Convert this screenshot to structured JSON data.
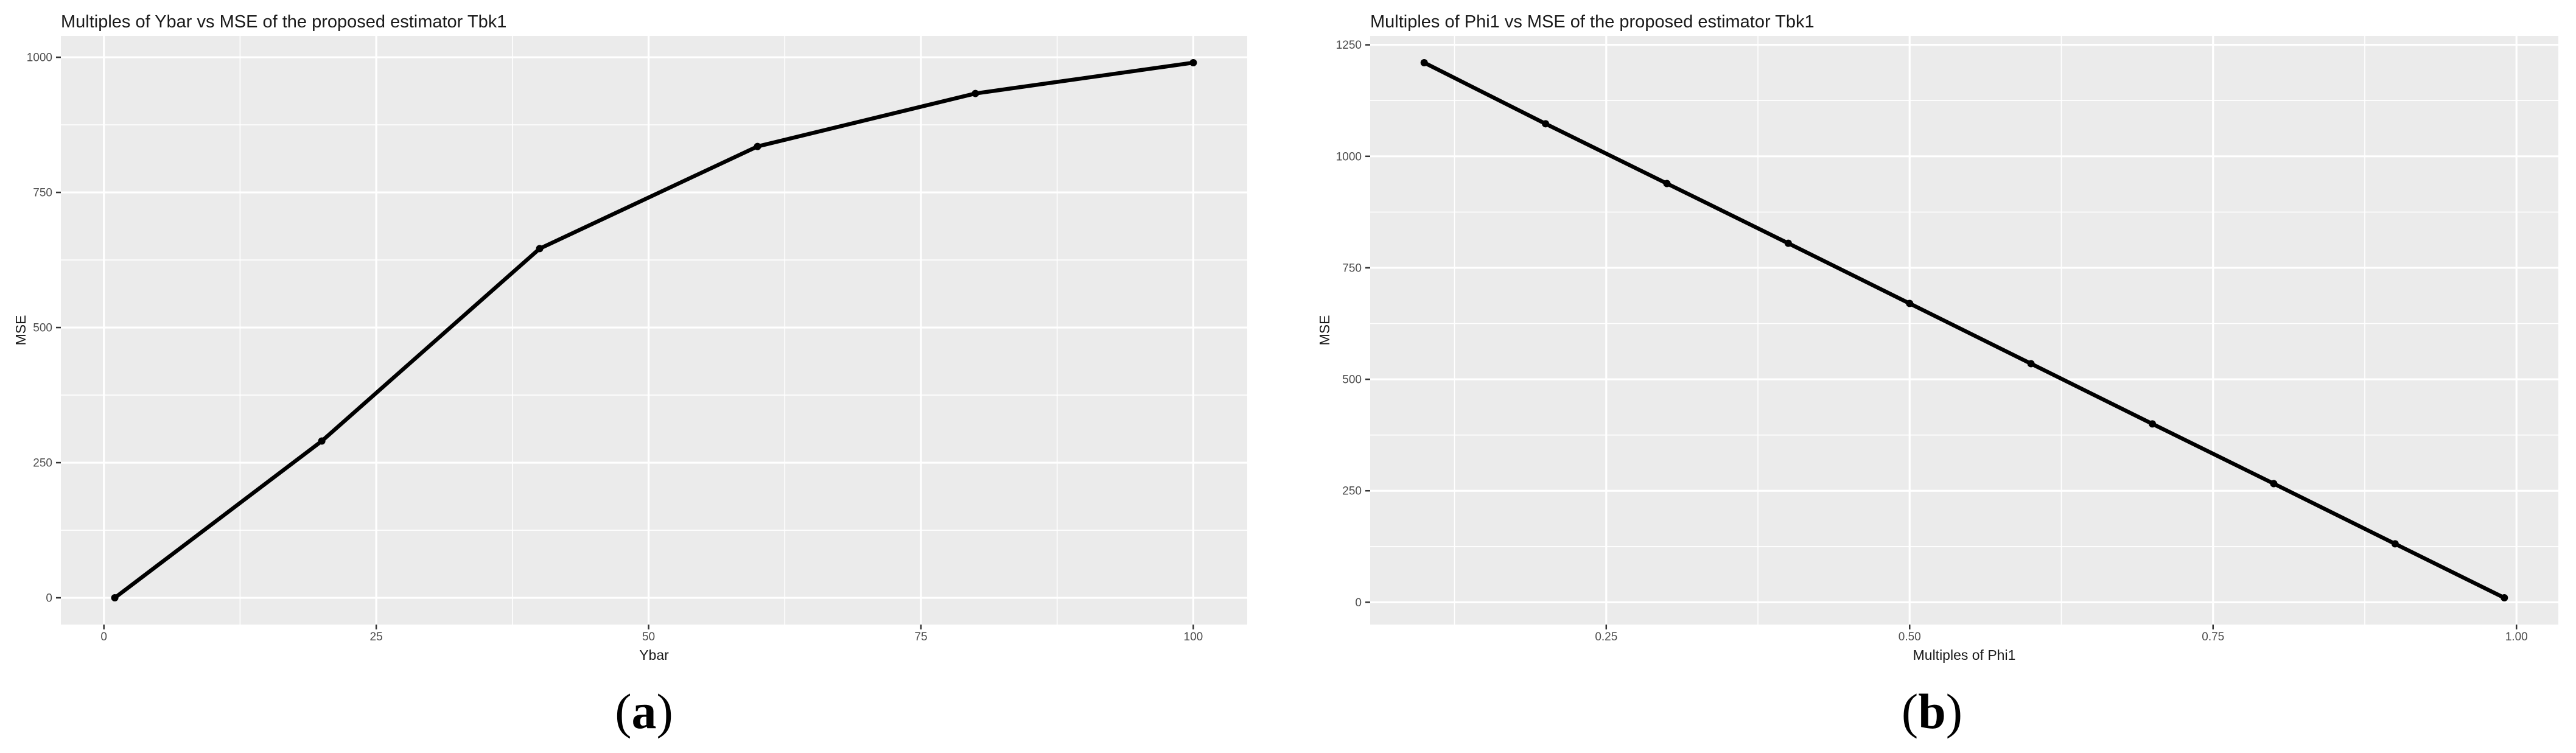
{
  "page": {
    "background": "#ffffff"
  },
  "style": {
    "panel_bg": "#ebebeb",
    "grid_color": "#ffffff",
    "tick_mark_color": "#333333",
    "tick_label_color": "#4d4d4d",
    "title_color": "#1a1a1a",
    "axis_title_color": "#1a1a1a",
    "series_color": "#000000"
  },
  "figure": {
    "panels": [
      {
        "caption_open": "(",
        "caption_letter": "a",
        "caption_close": ")"
      },
      {
        "caption_open": "(",
        "caption_letter": "b",
        "caption_close": ")"
      }
    ]
  },
  "chart_data": [
    {
      "type": "line",
      "title": "Multiples of Ybar vs MSE of the proposed estimator Tbk1",
      "xlabel": "Ybar",
      "ylabel": "MSE",
      "x": [
        1,
        20,
        40,
        60,
        80,
        100
      ],
      "y": [
        0,
        290,
        646,
        835,
        933,
        990
      ],
      "x_ticks": [
        0,
        25,
        50,
        75,
        100
      ],
      "x_tick_labels": [
        "0",
        "25",
        "50",
        "75",
        "100"
      ],
      "y_ticks": [
        0,
        250,
        500,
        750,
        1000
      ],
      "y_tick_labels": [
        "0",
        "250",
        "500",
        "750",
        "1000"
      ],
      "xlim": [
        -3.95,
        104.95
      ],
      "ylim": [
        -49.5,
        1039.5
      ],
      "grid": true,
      "legend": "none",
      "marker": "point",
      "caption": "(a)"
    },
    {
      "type": "line",
      "title": "Multiples of Phi1 vs MSE of the proposed estimator Tbk1",
      "xlabel": "Multiples of Phi1",
      "ylabel": "MSE",
      "x": [
        0.1,
        0.2,
        0.3,
        0.4,
        0.5,
        0.6,
        0.7,
        0.8,
        0.9,
        0.99
      ],
      "y": [
        1210,
        1073,
        939,
        805,
        670,
        535,
        400,
        266,
        131,
        10
      ],
      "x_ticks": [
        0.25,
        0.5,
        0.75,
        1.0
      ],
      "x_tick_labels": [
        "0.25",
        "0.50",
        "0.75",
        "1.00"
      ],
      "y_ticks": [
        0,
        250,
        500,
        750,
        1000,
        1250
      ],
      "y_tick_labels": [
        "0",
        "250",
        "500",
        "750",
        "1000",
        "1250"
      ],
      "xlim": [
        0.0555,
        1.0345
      ],
      "ylim": [
        -50,
        1270
      ],
      "grid": true,
      "legend": "none",
      "marker": "point",
      "caption": "(b)"
    }
  ]
}
